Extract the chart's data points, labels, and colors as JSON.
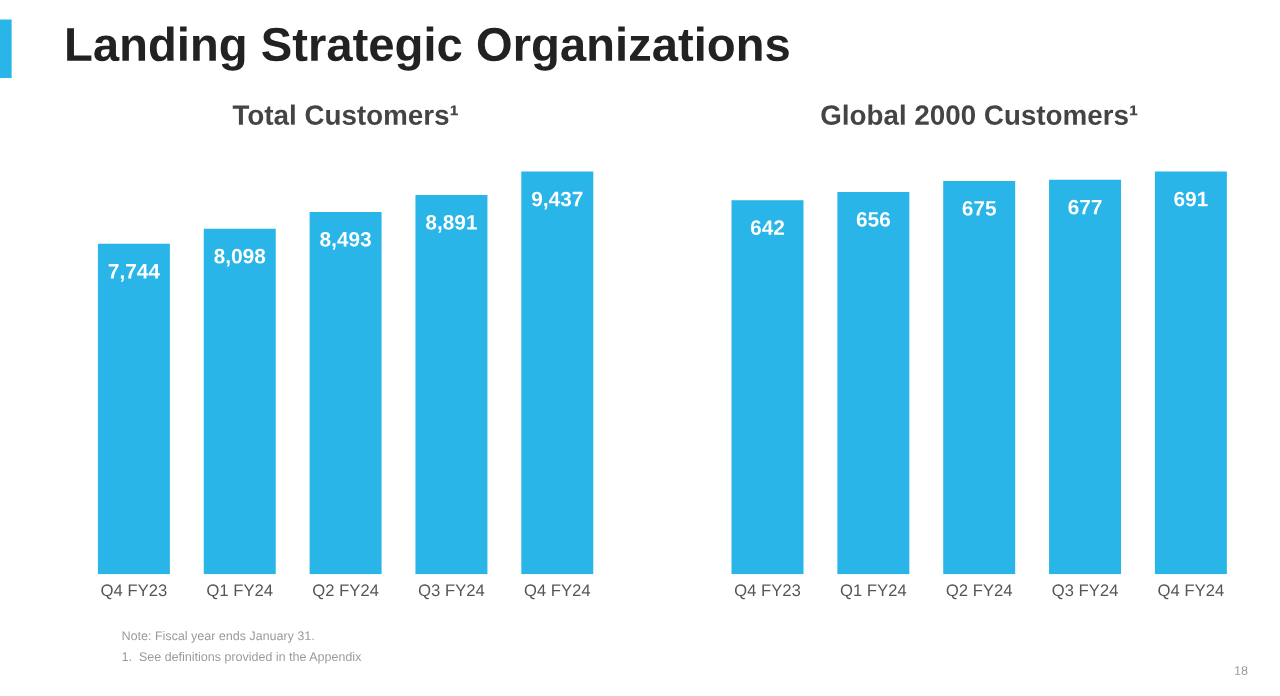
{
  "chart_data": [
    {
      "type": "bar",
      "title": "Total Customers¹",
      "categories": [
        "Q4 FY23",
        "Q1 FY24",
        "Q2 FY24",
        "Q3 FY24",
        "Q4 FY24"
      ],
      "values": [
        7744,
        8098,
        8493,
        8891,
        9437
      ],
      "value_labels": [
        "7,744",
        "8,098",
        "8,493",
        "8,891",
        "9,437"
      ],
      "color": "#29b5e8",
      "grid": false,
      "legend": false,
      "tick_labels": "x",
      "annotations": [
        "Landing Strategic Organizations",
        "Note: Fiscal year ends January 31.",
        "1.  See definitions provided in the Appendix"
      ]
    },
    {
      "type": "bar",
      "title": "Global 2000 Customers¹",
      "categories": [
        "Q4 FY23",
        "Q1 FY24",
        "Q2 FY24",
        "Q3 FY24",
        "Q4 FY24"
      ],
      "values": [
        642,
        656,
        675,
        677,
        691
      ],
      "data_labels": true,
      "color": "#29b5e8",
      "grid": false,
      "legend": false,
      "tick_labels": "x",
      "annotations": [
        "18"
      ]
    }
  ]
}
